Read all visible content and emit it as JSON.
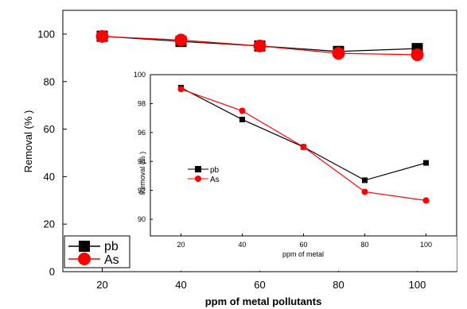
{
  "chart_data": [
    {
      "type": "line",
      "xlabel": "ppm of metal pollutants",
      "ylabel": "Removal  (% )",
      "x": [
        20,
        40,
        60,
        80,
        100
      ],
      "xticks": [
        "20",
        "40",
        "60",
        "80",
        "100"
      ],
      "yticks": [
        "0",
        "20",
        "40",
        "60",
        "80",
        "100"
      ],
      "xlim": [
        10,
        110
      ],
      "ylim": [
        0,
        110
      ],
      "legend": "bottom-left",
      "series": [
        {
          "name": "pb",
          "color": "#000000",
          "marker": "square",
          "values": [
            99.1,
            96.9,
            95.0,
            92.7,
            93.9
          ]
        },
        {
          "name": "As",
          "color": "#ff0000",
          "marker": "circle",
          "values": [
            99.0,
            97.5,
            95.0,
            91.9,
            91.3
          ]
        }
      ]
    },
    {
      "type": "line",
      "inset": true,
      "xlabel": "ppm of metal",
      "ylabel": "Removal (% )",
      "x": [
        20,
        40,
        60,
        80,
        100
      ],
      "xticks": [
        "20",
        "40",
        "60",
        "80",
        "100"
      ],
      "yticks": [
        "90",
        "92",
        "94",
        "96",
        "98",
        "100"
      ],
      "xlim": [
        10,
        110
      ],
      "ylim": [
        88.85,
        100
      ],
      "legend": "middle-left",
      "series": [
        {
          "name": "pb",
          "color": "#000000",
          "marker": "square",
          "values": [
            99.1,
            96.9,
            95.0,
            92.7,
            93.9
          ]
        },
        {
          "name": "As",
          "color": "#ff0000",
          "marker": "circle",
          "values": [
            99.0,
            97.5,
            95.0,
            91.9,
            91.3
          ]
        }
      ]
    }
  ]
}
